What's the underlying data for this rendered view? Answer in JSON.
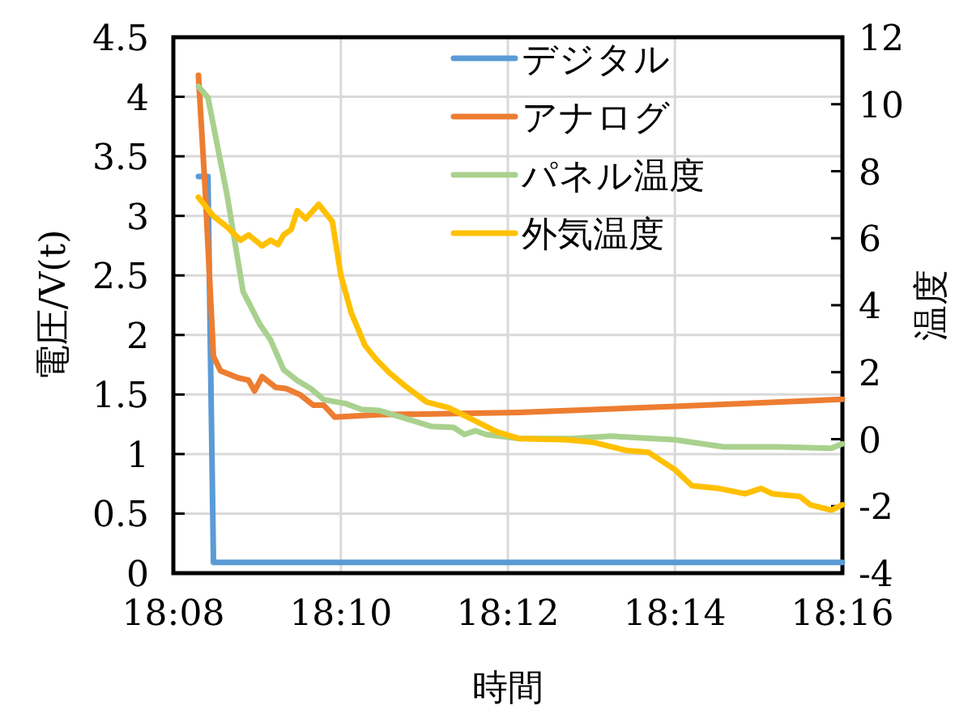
{
  "chart_data": {
    "type": "line",
    "xlabel": "時間",
    "ylabel": "電圧/V(t)",
    "y2label": "温度",
    "xlim": [
      18.1333,
      18.2667
    ],
    "xticks": [
      {
        "value": 18.1333,
        "label": "18:08"
      },
      {
        "value": 18.1667,
        "label": "18:10"
      },
      {
        "value": 18.2,
        "label": "18:12"
      },
      {
        "value": 18.2333,
        "label": "18:14"
      },
      {
        "value": 18.2667,
        "label": "18:16"
      }
    ],
    "ylim": [
      0,
      4.5
    ],
    "yticks": [
      0,
      0.5,
      1,
      1.5,
      2,
      2.5,
      3,
      3.5,
      4,
      4.5
    ],
    "y2lim": [
      -4,
      12
    ],
    "y2ticks": [
      -4,
      -2,
      0,
      2,
      4,
      6,
      8,
      10,
      12
    ],
    "grid": true,
    "legend": "top right",
    "marker": "none",
    "line_style": "solid",
    "series": [
      {
        "name": "デジタル",
        "color": "#5b9bd5",
        "x": [
          18.1383,
          18.1402,
          18.1413,
          18.2667
        ],
        "values": [
          3.33,
          3.33,
          0.09,
          0.09
        ]
      },
      {
        "name": "アナログ",
        "color": "#ed7d31",
        "x": [
          18.1383,
          18.1397,
          18.1413,
          18.1427,
          18.1462,
          18.1483,
          18.1495,
          18.151,
          18.1537,
          18.1558,
          18.1585,
          18.1612,
          18.1633,
          18.1655,
          18.1742,
          18.2022,
          18.2333,
          18.2667
        ],
        "values": [
          4.18,
          3.18,
          1.82,
          1.7,
          1.64,
          1.62,
          1.53,
          1.65,
          1.56,
          1.55,
          1.5,
          1.41,
          1.41,
          1.31,
          1.33,
          1.35,
          1.4,
          1.46
        ]
      },
      {
        "name": "パネル温度",
        "color": "#a9d18e",
        "axis": "y2",
        "x": [
          18.1383,
          18.1402,
          18.144,
          18.1472,
          18.1505,
          18.1527,
          18.1553,
          18.158,
          18.1607,
          18.1633,
          18.1677,
          18.1708,
          18.1742,
          18.1785,
          18.1848,
          18.1892,
          18.1913,
          18.1935,
          18.1957,
          18.2022,
          18.2065,
          18.2128,
          18.2205,
          18.2333,
          18.243,
          18.2538,
          18.2645,
          18.2667
        ],
        "values": [
          10.53,
          10.2,
          7.3,
          4.41,
          3.44,
          2.96,
          2.07,
          1.75,
          1.51,
          1.18,
          1.06,
          0.89,
          0.86,
          0.67,
          0.38,
          0.35,
          0.14,
          0.25,
          0.14,
          0.02,
          0.02,
          0.02,
          0.09,
          -0.02,
          -0.23,
          -0.23,
          -0.27,
          -0.14
        ]
      },
      {
        "name": "外気温度",
        "color": "#ffc000",
        "axis": "y2",
        "x": [
          18.1383,
          18.1413,
          18.144,
          18.1467,
          18.1483,
          18.151,
          18.1527,
          18.1542,
          18.1553,
          18.1568,
          18.158,
          18.1597,
          18.1623,
          18.165,
          18.1667,
          18.1688,
          18.1715,
          18.1737,
          18.1763,
          18.1795,
          18.1838,
          18.1882,
          18.1925,
          18.1978,
          18.2022,
          18.2118,
          18.2172,
          18.2237,
          18.228,
          18.2333,
          18.2367,
          18.242,
          18.2473,
          18.2505,
          18.2527,
          18.2582,
          18.2603,
          18.2645,
          18.2667
        ],
        "values": [
          7.22,
          6.66,
          6.34,
          5.94,
          6.1,
          5.77,
          5.94,
          5.81,
          6.1,
          6.26,
          6.82,
          6.58,
          7.01,
          6.5,
          4.89,
          3.76,
          2.8,
          2.39,
          1.99,
          1.59,
          1.11,
          0.94,
          0.62,
          0.22,
          0.02,
          -0.02,
          -0.1,
          -0.34,
          -0.39,
          -0.91,
          -1.39,
          -1.47,
          -1.63,
          -1.47,
          -1.63,
          -1.71,
          -1.96,
          -2.12,
          -1.96
        ]
      }
    ]
  }
}
